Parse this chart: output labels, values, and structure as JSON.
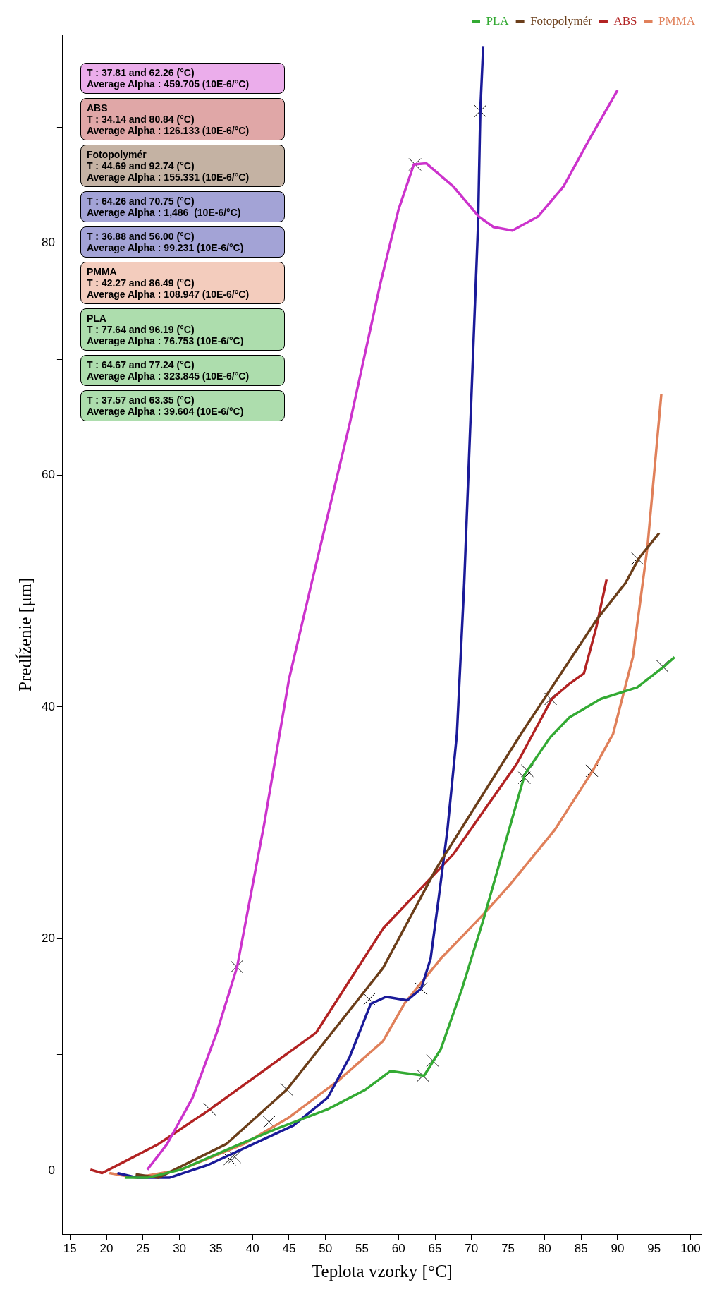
{
  "chart_data": {
    "type": "line",
    "xlabel": "Teplota vzorky [°C]",
    "ylabel": "Predĺženie [μm]",
    "xlim": [
      14,
      101.5
    ],
    "xticks": [
      15,
      20,
      25,
      30,
      35,
      40,
      45,
      50,
      55,
      60,
      65,
      70,
      75,
      80,
      85,
      90,
      95,
      100
    ],
    "ylim": [
      -5.5,
      98
    ],
    "yticks": [
      0,
      {
        "value": 10,
        "label": null
      },
      20,
      {
        "value": 30,
        "label": null
      },
      40,
      {
        "value": 50,
        "label": null
      },
      60,
      {
        "value": 70,
        "label": null
      },
      80,
      {
        "value": 90,
        "label": null
      }
    ],
    "legend": "top right",
    "series": [
      {
        "color": "#cc33cc",
        "x": [
          25.6,
          28.3,
          31.8,
          35.1,
          37.9,
          41.6,
          45.0,
          48.1,
          53.3,
          57.5,
          60.0,
          62.1,
          63.8,
          67.5,
          71.0,
          73.0,
          75.6,
          79.1,
          82.6,
          86.0,
          90.0
        ],
        "values": [
          0.1,
          2.3,
          6.3,
          11.9,
          17.6,
          29.9,
          42.4,
          50.7,
          64.4,
          76.5,
          82.9,
          86.8,
          86.9,
          84.9,
          82.3,
          81.4,
          81.1,
          82.3,
          84.9,
          88.8,
          93.2
        ]
      },
      {
        "name": "PLA",
        "color": "#33aa33",
        "x": [
          22.5,
          25.6,
          30.2,
          38.3,
          43.2,
          50.3,
          55.5,
          58.9,
          63.5,
          65.8,
          68.7,
          71.6,
          74.5,
          77.3,
          80.8,
          83.4,
          87.7,
          92.7,
          96.4,
          97.8
        ],
        "values": [
          -0.6,
          -0.6,
          0.1,
          2.3,
          3.6,
          5.3,
          7.0,
          8.6,
          8.2,
          10.5,
          15.7,
          21.6,
          28.0,
          34.2,
          37.4,
          39.1,
          40.7,
          41.7,
          43.5,
          44.3
        ]
      },
      {
        "name": "Fotopolymér",
        "color": "#6b3e1a",
        "x": [
          24.0,
          27.1,
          36.4,
          44.7,
          57.9,
          65.2,
          76.8,
          87.1,
          91.1,
          92.9,
          95.7
        ],
        "values": [
          -0.3,
          -0.6,
          2.3,
          7.0,
          17.5,
          26.1,
          37.7,
          47.5,
          50.7,
          52.8,
          55.0
        ]
      },
      {
        "color": "#1a1a99",
        "x": [
          21.5,
          24.3,
          28.6,
          33.9,
          40.1,
          45.6,
          50.3,
          53.3,
          56.2,
          58.3,
          61.2,
          63.1,
          64.4,
          65.5,
          66.7,
          68.0,
          69.0,
          70.9,
          71.2,
          71.6
        ],
        "values": [
          -0.2,
          -0.6,
          -0.6,
          0.5,
          2.3,
          3.9,
          6.3,
          9.8,
          14.4,
          15.0,
          14.7,
          15.7,
          18.3,
          23.5,
          29.4,
          37.7,
          50.7,
          81.7,
          91.4,
          97
        ]
      },
      {
        "name": "ABS",
        "color": "#b22222",
        "x": [
          17.8,
          19.4,
          22.5,
          27.1,
          34.2,
          48.7,
          57.9,
          67.5,
          76.2,
          81.0,
          83.4,
          85.4,
          87.1,
          88.5
        ],
        "values": [
          0.1,
          -0.2,
          0.8,
          2.3,
          5.3,
          11.9,
          20.9,
          27.3,
          35.1,
          40.7,
          42.0,
          42.9,
          46.9,
          51.0
        ]
      },
      {
        "name": "PMMA",
        "color": "#e0805a",
        "x": [
          20.4,
          24.0,
          30.2,
          38.8,
          45.0,
          51.8,
          57.9,
          60.9,
          65.8,
          71.6,
          75.3,
          81.4,
          86.6,
          89.4,
          92.1,
          94.1,
          96.0
        ],
        "values": [
          -0.2,
          -0.6,
          0.1,
          2.3,
          4.6,
          7.8,
          11.2,
          14.5,
          18.3,
          22.1,
          24.7,
          29.4,
          34.5,
          37.7,
          44.3,
          53.8,
          67.0
        ]
      },
      {
        "type": "scatter",
        "marker": "cross",
        "color": "#000000",
        "x": [
          37.81,
          62.26,
          34.14,
          80.84,
          44.69,
          92.74,
          63.1,
          71.2,
          36.88,
          56.0,
          42.27,
          86.49,
          77.64,
          96.19,
          64.67,
          77.24,
          37.57,
          63.35
        ],
        "values": [
          17.6,
          86.8,
          5.3,
          40.7,
          7.0,
          52.8,
          15.7,
          91.4,
          1.0,
          14.8,
          4.2,
          34.5,
          34.5,
          43.5,
          9.5,
          33.9,
          1.2,
          8.2
        ]
      }
    ],
    "annotations": [
      "T : 37.81 and 62.26 (°C)\nAverage Alpha : 459.705 (10E-6/°C)",
      "ABS\nT : 34.14 and 80.84 (°C)\nAverage Alpha : 126.133 (10E-6/°C)",
      "Fotopolymér\nT : 44.69 and 92.74 (°C)\nAverage Alpha : 155.331 (10E-6/°C)",
      "T : 64.26 and 70.75 (°C)\nAverage Alpha : 1,486  (10E-6/°C)",
      "T : 36.88 and 56.00 (°C)\nAverage Alpha : 99.231 (10E-6/°C)",
      "PMMA\nT : 42.27 and 86.49 (°C)\nAverage Alpha : 108.947 (10E-6/°C)",
      "PLA\nT : 77.64 and 96.19 (°C)\nAverage Alpha : 76.753 (10E-6/°C)",
      "T : 64.67 and 77.24 (°C)\nAverage Alpha : 323.845 (10E-6/°C)",
      "T : 37.57 and 63.35 (°C)\nAverage Alpha : 39.604 (10E-6/°C)"
    ]
  }
}
